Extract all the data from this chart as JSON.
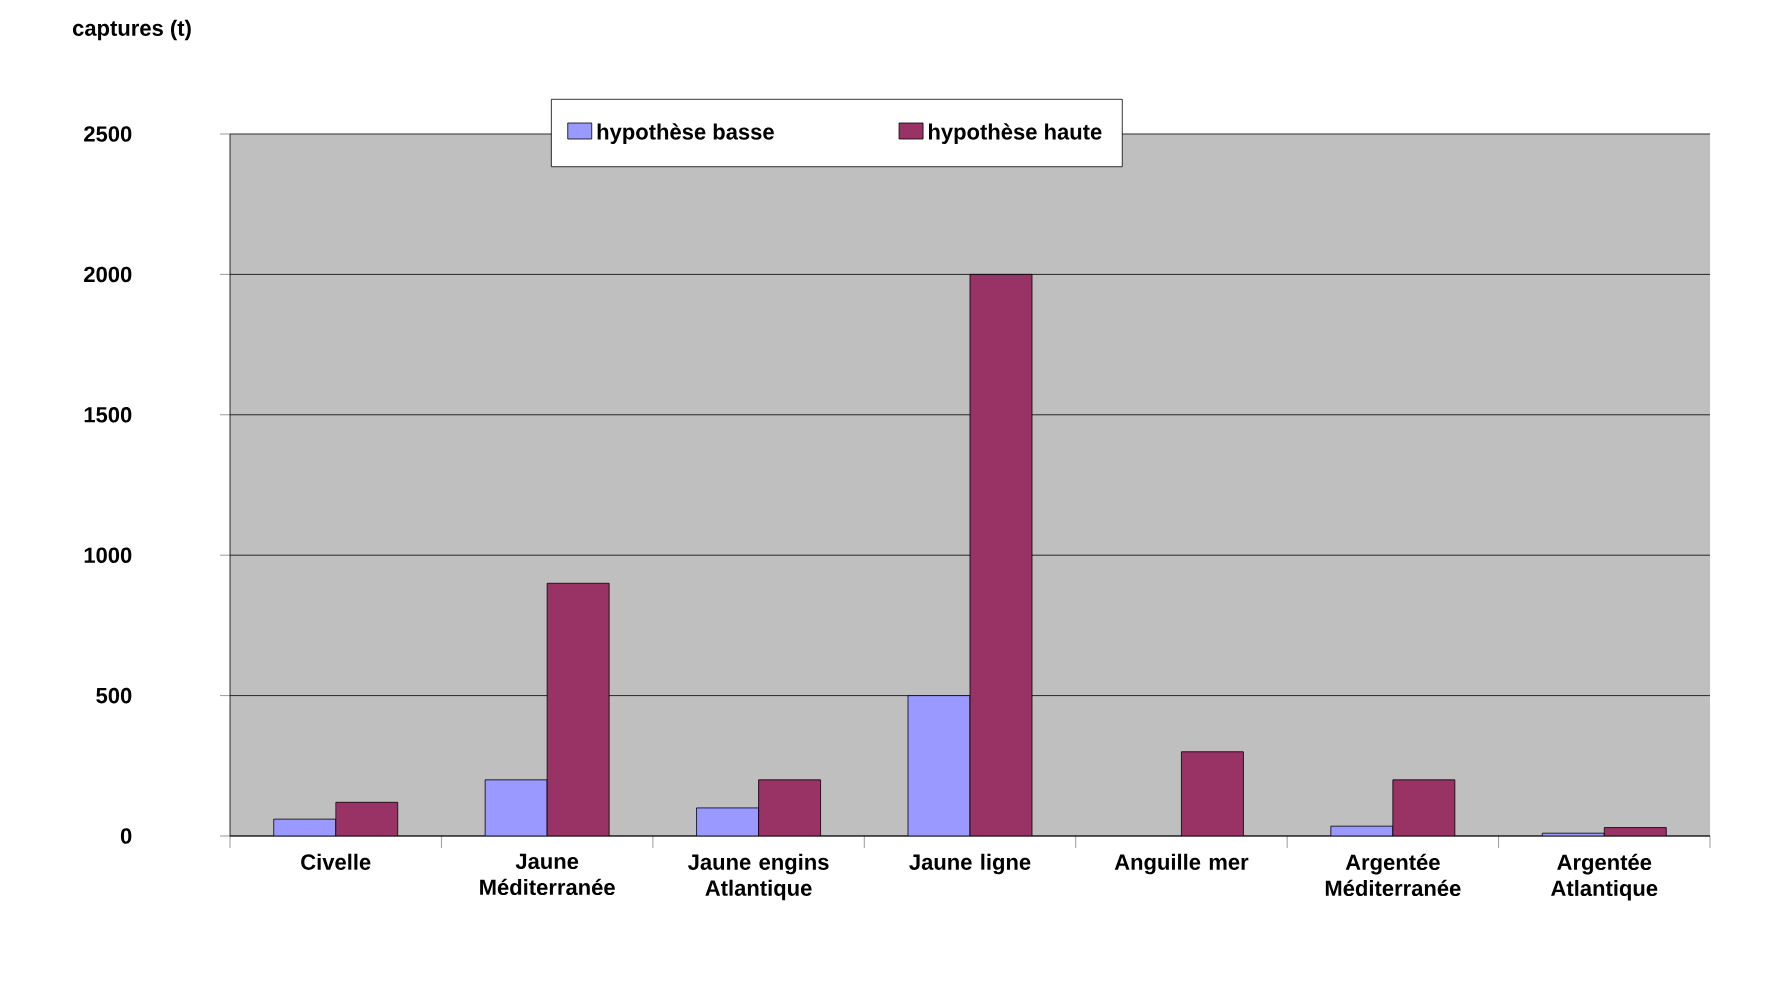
{
  "chart_data": {
    "type": "bar",
    "ylabel": "captures (t)",
    "categories": [
      "Civelle",
      "Jaune Méditerranée",
      "Jaune engins Atlantique",
      "Jaune ligne",
      "Anguille mer",
      "Argentée Méditerranée",
      "Argentée Atlantique"
    ],
    "series": [
      {
        "name": "hypothèse basse",
        "color": "#9999ff",
        "values": [
          60,
          200,
          100,
          500,
          null,
          35,
          10
        ]
      },
      {
        "name": "hypothèse haute",
        "color": "#993366",
        "values": [
          120,
          900,
          200,
          2000,
          300,
          200,
          30
        ]
      }
    ],
    "ylim": [
      0,
      2500
    ],
    "yticks": [
      0,
      500,
      1000,
      1500,
      2000,
      2500
    ],
    "grid": "y",
    "legend": "top"
  }
}
